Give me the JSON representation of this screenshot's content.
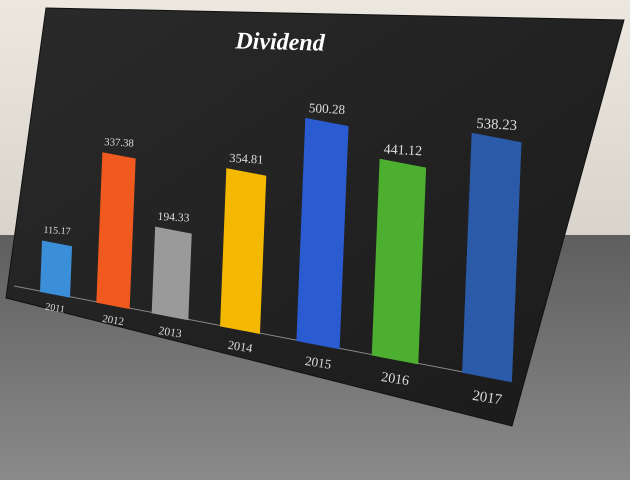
{
  "chart_data": {
    "type": "bar",
    "title": "Dividend",
    "categories": [
      "2011",
      "2012",
      "2013",
      "2014",
      "2015",
      "2016",
      "2017"
    ],
    "values": [
      115.17,
      337.38,
      194.33,
      354.81,
      500.28,
      441.12,
      538.23
    ],
    "colors": [
      "#3a8fd8",
      "#f05a1e",
      "#9a9a9a",
      "#f5b800",
      "#2a5bd0",
      "#4caf30",
      "#2a5aa8"
    ]
  }
}
